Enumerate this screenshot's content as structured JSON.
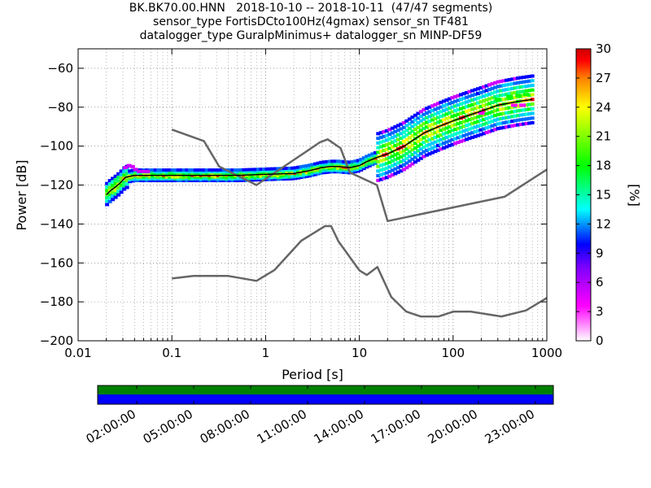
{
  "chart_data": {
    "type": "heatmap",
    "title_lines": [
      "BK.BK70.00.HNN   2018-10-10 -- 2018-10-11  (47/47 segments)",
      "sensor_type FortisDCto100Hz(4gmax) sensor_sn TF481",
      "datalogger_type GuralpMinimus+ datalogger_sn MINP-DF59"
    ],
    "xlabel": "Period [s]",
    "ylabel": "Power [dB]",
    "x_scale": "log",
    "xlim": [
      0.01,
      1000
    ],
    "ylim": [
      -200,
      -50
    ],
    "x_ticks": [
      0.01,
      0.1,
      1,
      10,
      100,
      1000
    ],
    "x_tick_labels": [
      "0.01",
      "0.1",
      "1",
      "10",
      "100",
      "1000"
    ],
    "y_ticks": [
      -200,
      -180,
      -160,
      -140,
      -120,
      -100,
      -80,
      -60
    ],
    "y_tick_labels": [
      "−200",
      "−180",
      "−160",
      "−140",
      "−120",
      "−100",
      "−80",
      "−60"
    ],
    "grid": true,
    "colorbar": {
      "label": "[%]",
      "range": [
        0,
        30
      ],
      "ticks": [
        0,
        3,
        6,
        9,
        12,
        15,
        18,
        21,
        24,
        27,
        30
      ],
      "tick_labels": [
        "0",
        "3",
        "6",
        "9",
        "12",
        "15",
        "18",
        "21",
        "24",
        "27",
        "30"
      ],
      "colors": [
        "#ffffff",
        "#ff00ff",
        "#0000ff",
        "#00ffff",
        "#00ff00",
        "#ffff00",
        "#ff7f00",
        "#ff0000",
        "#7f0000"
      ]
    },
    "noise_model_high": {
      "x": [
        0.1,
        0.22,
        0.32,
        0.8,
        3.8,
        4.6,
        6.3,
        7.9,
        15.4,
        20,
        354,
        1000
      ],
      "y": [
        -91.5,
        -97.4,
        -110.5,
        -120,
        -98,
        -96.5,
        -101,
        -113.5,
        -120,
        -138.5,
        -126,
        -112
      ]
    },
    "noise_model_low": {
      "x": [
        0.1,
        0.17,
        0.4,
        0.8,
        1.24,
        2.4,
        4.3,
        5,
        6,
        10,
        12,
        15.6,
        21.9,
        31.6,
        45,
        70,
        101,
        154,
        328,
        600,
        1000
      ],
      "y": [
        -168,
        -166.7,
        -166.7,
        -169.2,
        -163.7,
        -148.6,
        -141.1,
        -141.1,
        -149,
        -163.8,
        -166.2,
        -162.1,
        -177.5,
        -185,
        -187.5,
        -187.5,
        -185,
        -185,
        -187.5,
        -184.4,
        -178
      ]
    },
    "mode_curve": {
      "x": [
        0.02,
        0.022,
        0.025,
        0.028,
        0.032,
        0.04,
        0.1,
        0.5,
        1,
        2,
        3,
        4,
        5,
        6,
        8,
        10,
        12,
        15,
        20,
        30,
        40,
        50,
        70,
        100,
        150,
        200,
        300,
        500,
        700
      ],
      "y": [
        -125,
        -123,
        -121,
        -119,
        -116,
        -115,
        -115,
        -115,
        -114.5,
        -114,
        -112.5,
        -111,
        -110.5,
        -110.5,
        -111,
        -110,
        -108,
        -106,
        -104,
        -100,
        -96,
        -93,
        -90,
        -87,
        -84,
        -82,
        -79,
        -77,
        -76
      ]
    },
    "density_bands": [
      {
        "x_start": 0.019,
        "x_end": 0.034,
        "segments": [
          [
            -128,
            -116,
            15
          ]
        ],
        "comment": "short-period ramp"
      }
    ],
    "density_scatter_note": "2D probability density of PSD segments shown as colored cells along the mode curve"
  },
  "timeline": {
    "tick_labels": [
      "02:00:00",
      "05:00:00",
      "08:00:00",
      "11:00:00",
      "14:00:00",
      "17:00:00",
      "20:00:00",
      "23:00:00"
    ],
    "top_color": "#008000",
    "bottom_color": "#0000ff"
  }
}
